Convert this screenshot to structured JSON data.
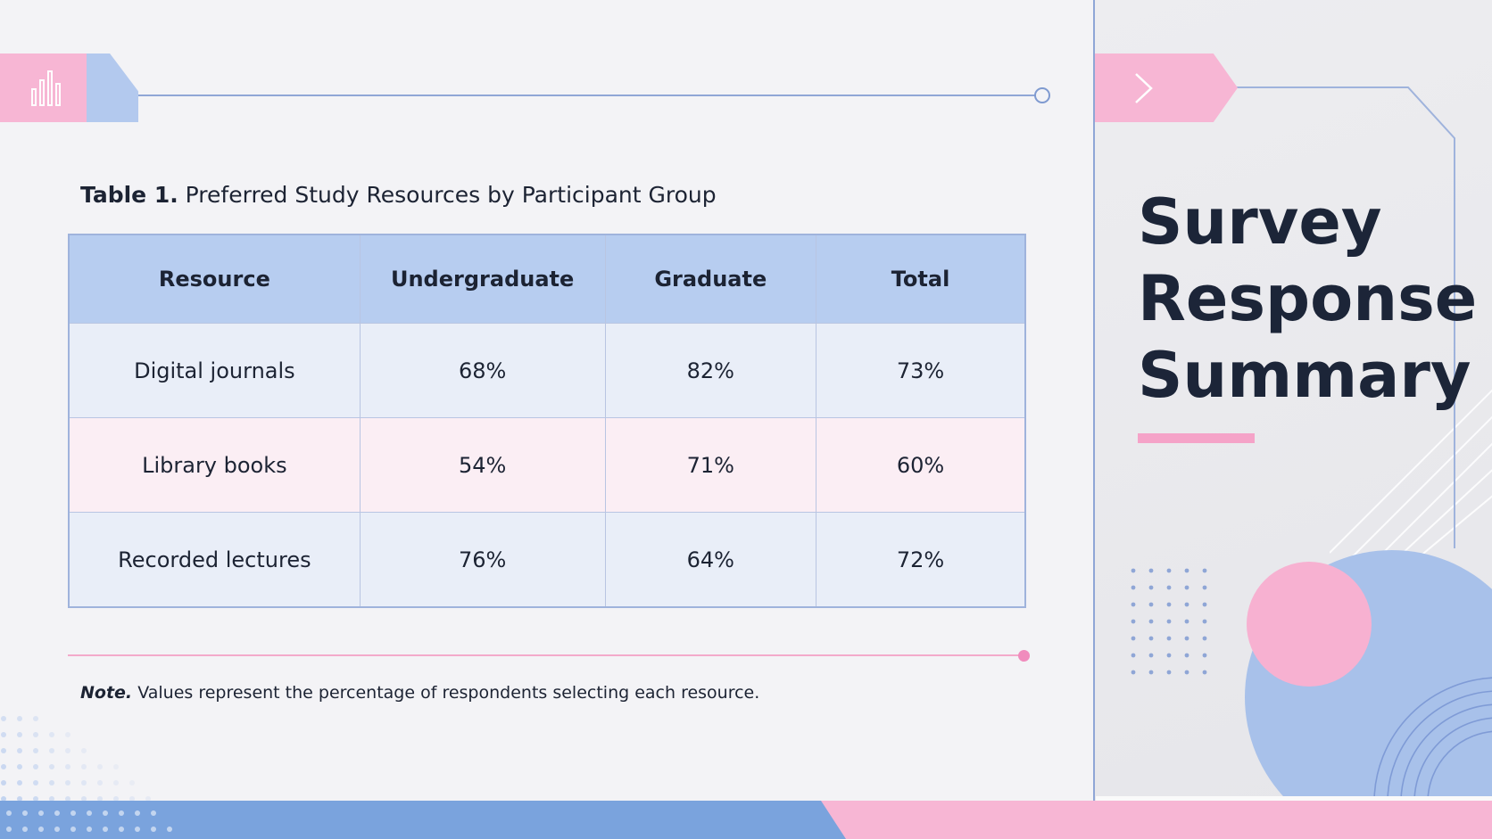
{
  "slide": {
    "title_lines": [
      "Survey",
      "Response",
      "Summary"
    ],
    "colors": {
      "pink_accent": "#f7b6d4",
      "blue_accent": "#b3c9ee",
      "header_row": "#b7cdf0",
      "text_dark": "#1c2333"
    }
  },
  "table": {
    "caption_label": "Table 1.",
    "caption_text": "Preferred Study Resources by Participant Group",
    "headers": [
      "Resource",
      "Undergraduate",
      "Graduate",
      "Total"
    ],
    "rows": [
      [
        "Digital journals",
        "68%",
        "82%",
        "73%"
      ],
      [
        "Library books",
        "54%",
        "71%",
        "60%"
      ],
      [
        "Recorded lectures",
        "76%",
        "64%",
        "72%"
      ]
    ]
  },
  "note": {
    "label": "Note.",
    "text": "Values represent the percentage of respondents selecting each resource."
  },
  "icons": {
    "header_left": "bar-chart-icon",
    "header_right": "chevron-right-icon"
  }
}
